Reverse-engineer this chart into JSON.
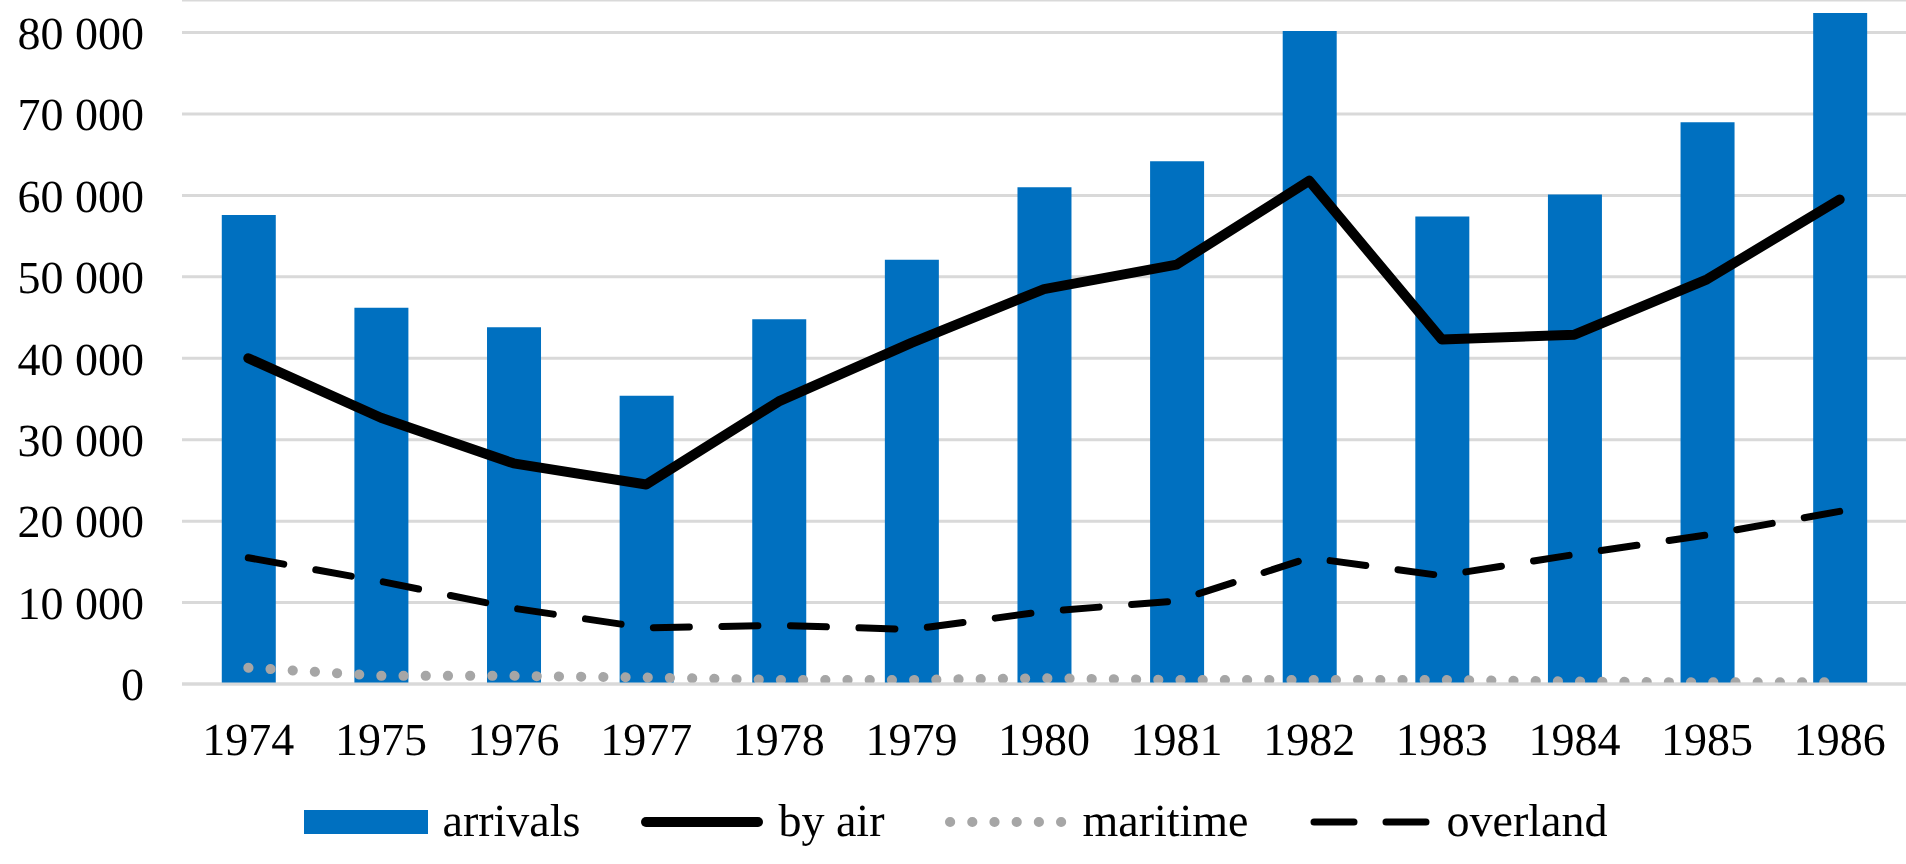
{
  "chart_data": {
    "type": "bar",
    "categories": [
      "1974",
      "1975",
      "1976",
      "1977",
      "1978",
      "1979",
      "1980",
      "1981",
      "1982",
      "1983",
      "1984",
      "1985",
      "1986"
    ],
    "series": [
      {
        "name": "arrivals",
        "color": "#0070c0",
        "values": [
          57600,
          46200,
          43800,
          35400,
          44800,
          52100,
          61000,
          64200,
          80200,
          57400,
          60100,
          69000,
          82400
        ]
      },
      {
        "name": "by air",
        "type": "line",
        "color": "#000000",
        "line_style": "solid",
        "values": [
          40000,
          32700,
          27100,
          24500,
          34700,
          41900,
          48500,
          51500,
          61800,
          42300,
          42900,
          49700,
          59500
        ]
      },
      {
        "name": "maritime",
        "type": "line",
        "color": "#a6a6a6",
        "line_style": "dotted",
        "values": [
          2000,
          1000,
          1000,
          800,
          500,
          500,
          700,
          500,
          500,
          500,
          300,
          200,
          200
        ]
      },
      {
        "name": "overland",
        "type": "line",
        "color": "#000000",
        "line_style": "dashed",
        "values": [
          15500,
          12600,
          9300,
          6900,
          7200,
          6700,
          8900,
          10200,
          15500,
          13300,
          15900,
          18300,
          21200
        ]
      }
    ],
    "ylim": [
      0,
      84000
    ],
    "yticks": [
      0,
      {
        "value": 10000,
        "label": "10 000"
      },
      {
        "value": 20000,
        "label": "20 000"
      },
      {
        "value": 30000,
        "label": "30 000"
      },
      {
        "value": 40000,
        "label": "40 000"
      },
      {
        "value": 50000,
        "label": "50 000"
      },
      {
        "value": 60000,
        "label": "60 000"
      },
      {
        "value": 70000,
        "label": "70 000"
      },
      {
        "value": 80000,
        "label": "80 000"
      }
    ],
    "grid": "y",
    "legend": "bottom",
    "marker": "none"
  }
}
